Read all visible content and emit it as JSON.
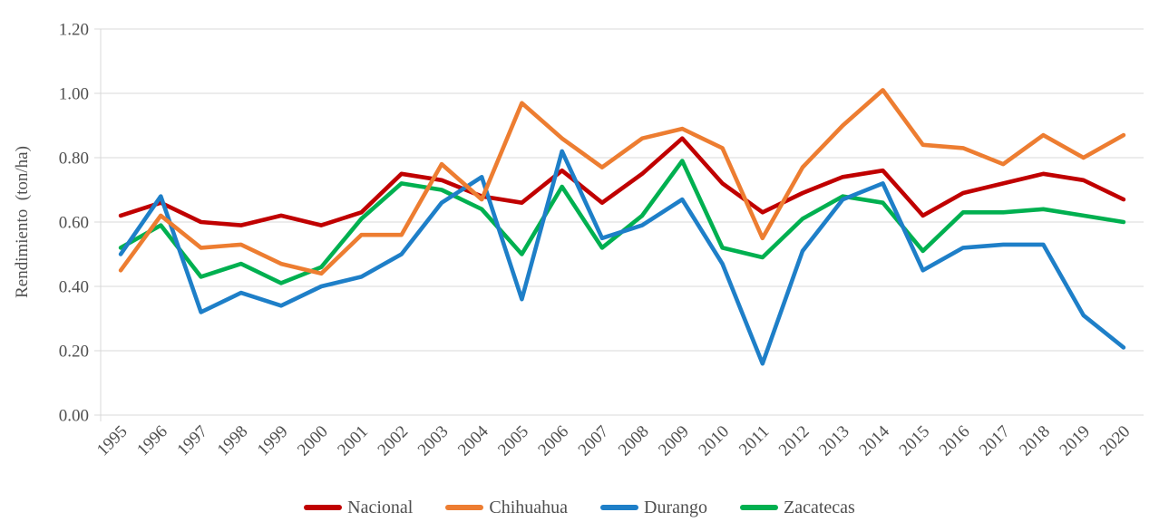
{
  "chart_data": {
    "type": "line",
    "title": "",
    "xlabel": "",
    "ylabel": "Rendimiento  (ton/ha)",
    "ylim": [
      0.0,
      1.2
    ],
    "ytick_step": 0.2,
    "yticks": [
      "0.00",
      "0.20",
      "0.40",
      "0.60",
      "0.80",
      "1.00",
      "1.20"
    ],
    "grid": "horizontal",
    "legend_position": "bottom",
    "categories": [
      "1995",
      "1996",
      "1997",
      "1998",
      "1999",
      "2000",
      "2001",
      "2002",
      "2003",
      "2004",
      "2005",
      "2006",
      "2007",
      "2008",
      "2009",
      "2010",
      "2011",
      "2012",
      "2013",
      "2014",
      "2015",
      "2016",
      "2017",
      "2018",
      "2019",
      "2020"
    ],
    "series": [
      {
        "name": "Nacional",
        "color": "#C00000",
        "values": [
          0.62,
          0.66,
          0.6,
          0.59,
          0.62,
          0.59,
          0.63,
          0.75,
          0.73,
          0.68,
          0.66,
          0.76,
          0.66,
          0.75,
          0.86,
          0.72,
          0.63,
          0.69,
          0.74,
          0.76,
          0.62,
          0.69,
          0.72,
          0.75,
          0.73,
          0.67
        ]
      },
      {
        "name": "Chihuahua",
        "color": "#ED7D31",
        "values": [
          0.45,
          0.62,
          0.52,
          0.53,
          0.47,
          0.44,
          0.56,
          0.56,
          0.78,
          0.67,
          0.97,
          0.86,
          0.77,
          0.86,
          0.89,
          0.83,
          0.55,
          0.77,
          0.9,
          1.01,
          0.84,
          0.83,
          0.78,
          0.87,
          0.8,
          0.87
        ]
      },
      {
        "name": "Durango",
        "color": "#1E7FC8",
        "values": [
          0.5,
          0.68,
          0.32,
          0.38,
          0.34,
          0.4,
          0.43,
          0.5,
          0.66,
          0.74,
          0.36,
          0.82,
          0.55,
          0.59,
          0.67,
          0.47,
          0.16,
          0.51,
          0.67,
          0.72,
          0.45,
          0.52,
          0.53,
          0.53,
          0.31,
          0.21
        ]
      },
      {
        "name": "Zacatecas",
        "color": "#00B050",
        "values": [
          0.52,
          0.59,
          0.43,
          0.47,
          0.41,
          0.46,
          0.61,
          0.72,
          0.7,
          0.64,
          0.5,
          0.71,
          0.52,
          0.62,
          0.79,
          0.52,
          0.49,
          0.61,
          0.68,
          0.66,
          0.51,
          0.63,
          0.63,
          0.64,
          0.62,
          0.6
        ]
      }
    ],
    "colors": {
      "grid": "#D9D9D9",
      "axis_text": "#4F4F4F"
    }
  }
}
